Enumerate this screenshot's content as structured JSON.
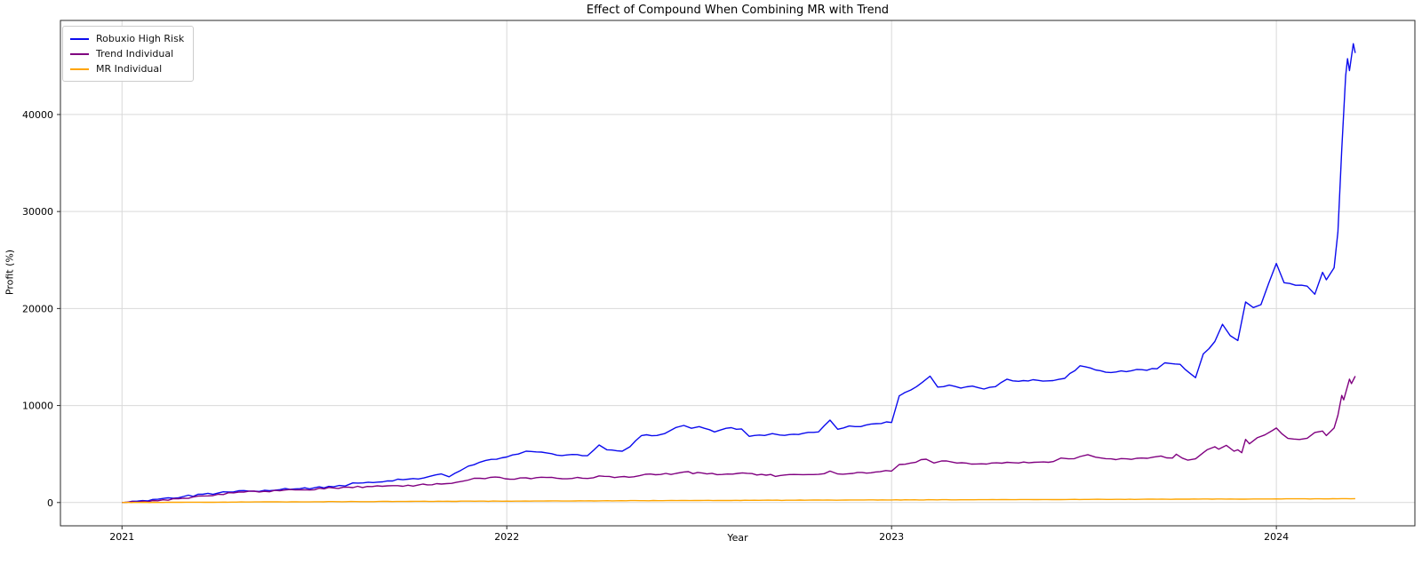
{
  "chart_data": {
    "type": "line",
    "title": "Effect of Compound When Combining MR with Trend",
    "xlabel": "Year",
    "ylabel": "Profit (%)",
    "x_ticks": [
      2021,
      2022,
      2023,
      2024
    ],
    "x_tick_labels": [
      "2021",
      "2022",
      "2023",
      "2024"
    ],
    "y_ticks": [
      0,
      10000,
      20000,
      30000,
      40000
    ],
    "y_tick_labels": [
      "0",
      "10000",
      "20000",
      "30000",
      "40000"
    ],
    "xlim": [
      2020.84,
      2024.36
    ],
    "ylim": [
      -2400,
      49700
    ],
    "grid": true,
    "grid_color": "#d9d9d9",
    "spine_color": "#2a2a2a",
    "background": "#ffffff",
    "legend_position": "upper-left",
    "series": [
      {
        "name": "Robuxio High Risk",
        "color": "#0b0bee",
        "points": [
          [
            2021.0,
            0
          ],
          [
            2021.04,
            150
          ],
          [
            2021.08,
            320
          ],
          [
            2021.12,
            480
          ],
          [
            2021.16,
            620
          ],
          [
            2021.21,
            850
          ],
          [
            2021.25,
            980
          ],
          [
            2021.29,
            1100
          ],
          [
            2021.33,
            1180
          ],
          [
            2021.37,
            1260
          ],
          [
            2021.41,
            1330
          ],
          [
            2021.45,
            1400
          ],
          [
            2021.5,
            1520
          ],
          [
            2021.55,
            1620
          ],
          [
            2021.58,
            1700
          ],
          [
            2021.6,
            2020
          ],
          [
            2021.64,
            2100
          ],
          [
            2021.69,
            2230
          ],
          [
            2021.73,
            2350
          ],
          [
            2021.77,
            2430
          ],
          [
            2021.8,
            2700
          ],
          [
            2021.83,
            2950
          ],
          [
            2021.85,
            2650
          ],
          [
            2021.88,
            3300
          ],
          [
            2021.9,
            3750
          ],
          [
            2021.93,
            4160
          ],
          [
            2021.96,
            4450
          ],
          [
            2022.0,
            4700
          ],
          [
            2022.03,
            5000
          ],
          [
            2022.05,
            5290
          ],
          [
            2022.09,
            5200
          ],
          [
            2022.13,
            4890
          ],
          [
            2022.17,
            4950
          ],
          [
            2022.21,
            4830
          ],
          [
            2022.24,
            5930
          ],
          [
            2022.26,
            5440
          ],
          [
            2022.3,
            5290
          ],
          [
            2022.32,
            5750
          ],
          [
            2022.35,
            6900
          ],
          [
            2022.39,
            6910
          ],
          [
            2022.41,
            7100
          ],
          [
            2022.44,
            7740
          ],
          [
            2022.46,
            7950
          ],
          [
            2022.48,
            7650
          ],
          [
            2022.5,
            7830
          ],
          [
            2022.54,
            7280
          ],
          [
            2022.57,
            7650
          ],
          [
            2022.61,
            7590
          ],
          [
            2022.63,
            6820
          ],
          [
            2022.67,
            6910
          ],
          [
            2022.69,
            7100
          ],
          [
            2022.71,
            6960
          ],
          [
            2022.77,
            7130
          ],
          [
            2022.81,
            7280
          ],
          [
            2022.84,
            8500
          ],
          [
            2022.86,
            7550
          ],
          [
            2022.89,
            7890
          ],
          [
            2022.92,
            7830
          ],
          [
            2022.96,
            8130
          ],
          [
            2023.0,
            8250
          ],
          [
            2023.02,
            11000
          ],
          [
            2023.05,
            11600
          ],
          [
            2023.08,
            12400
          ],
          [
            2023.1,
            13030
          ],
          [
            2023.12,
            11900
          ],
          [
            2023.15,
            12100
          ],
          [
            2023.18,
            11800
          ],
          [
            2023.21,
            12000
          ],
          [
            2023.24,
            11700
          ],
          [
            2023.27,
            11950
          ],
          [
            2023.3,
            12720
          ],
          [
            2023.33,
            12500
          ],
          [
            2023.38,
            12600
          ],
          [
            2023.42,
            12570
          ],
          [
            2023.45,
            12800
          ],
          [
            2023.49,
            14100
          ],
          [
            2023.53,
            13670
          ],
          [
            2023.57,
            13400
          ],
          [
            2023.61,
            13500
          ],
          [
            2023.65,
            13700
          ],
          [
            2023.69,
            13790
          ],
          [
            2023.71,
            14400
          ],
          [
            2023.75,
            14250
          ],
          [
            2023.79,
            12870
          ],
          [
            2023.81,
            15320
          ],
          [
            2023.84,
            16600
          ],
          [
            2023.86,
            18380
          ],
          [
            2023.88,
            17200
          ],
          [
            2023.9,
            16700
          ],
          [
            2023.92,
            20670
          ],
          [
            2023.94,
            20100
          ],
          [
            2023.96,
            20400
          ],
          [
            2023.98,
            22600
          ],
          [
            2024.0,
            24650
          ],
          [
            2024.02,
            22660
          ],
          [
            2024.05,
            22400
          ],
          [
            2024.08,
            22300
          ],
          [
            2024.1,
            21470
          ],
          [
            2024.12,
            23730
          ],
          [
            2024.13,
            22960
          ],
          [
            2024.15,
            24200
          ],
          [
            2024.16,
            27900
          ],
          [
            2024.17,
            36400
          ],
          [
            2024.18,
            44000
          ],
          [
            2024.185,
            45750
          ],
          [
            2024.19,
            44530
          ],
          [
            2024.2,
            47300
          ],
          [
            2024.205,
            46350
          ]
        ]
      },
      {
        "name": "Trend Individual",
        "color": "#800080",
        "points": [
          [
            2021.0,
            0
          ],
          [
            2021.08,
            200
          ],
          [
            2021.16,
            450
          ],
          [
            2021.21,
            680
          ],
          [
            2021.25,
            850
          ],
          [
            2021.29,
            1000
          ],
          [
            2021.37,
            1150
          ],
          [
            2021.45,
            1300
          ],
          [
            2021.55,
            1500
          ],
          [
            2021.65,
            1650
          ],
          [
            2021.69,
            1720
          ],
          [
            2021.77,
            1800
          ],
          [
            2021.83,
            1900
          ],
          [
            2021.87,
            2100
          ],
          [
            2021.9,
            2320
          ],
          [
            2021.93,
            2500
          ],
          [
            2021.97,
            2630
          ],
          [
            2022.02,
            2400
          ],
          [
            2022.05,
            2540
          ],
          [
            2022.13,
            2510
          ],
          [
            2022.21,
            2480
          ],
          [
            2022.24,
            2750
          ],
          [
            2022.28,
            2570
          ],
          [
            2022.33,
            2650
          ],
          [
            2022.36,
            2910
          ],
          [
            2022.4,
            2890
          ],
          [
            2022.44,
            3000
          ],
          [
            2022.46,
            3150
          ],
          [
            2022.52,
            2950
          ],
          [
            2022.56,
            2890
          ],
          [
            2022.6,
            3000
          ],
          [
            2022.65,
            2840
          ],
          [
            2022.71,
            2780
          ],
          [
            2022.77,
            2870
          ],
          [
            2022.81,
            2900
          ],
          [
            2022.84,
            3240
          ],
          [
            2022.86,
            2950
          ],
          [
            2022.9,
            3000
          ],
          [
            2022.97,
            3180
          ],
          [
            2023.0,
            3240
          ],
          [
            2023.02,
            3920
          ],
          [
            2023.05,
            4070
          ],
          [
            2023.09,
            4470
          ],
          [
            2023.11,
            4070
          ],
          [
            2023.13,
            4280
          ],
          [
            2023.17,
            4070
          ],
          [
            2023.22,
            3970
          ],
          [
            2023.26,
            4070
          ],
          [
            2023.3,
            4150
          ],
          [
            2023.33,
            4070
          ],
          [
            2023.37,
            4150
          ],
          [
            2023.42,
            4220
          ],
          [
            2023.44,
            4590
          ],
          [
            2023.46,
            4500
          ],
          [
            2023.49,
            4740
          ],
          [
            2023.51,
            4930
          ],
          [
            2023.53,
            4680
          ],
          [
            2023.57,
            4500
          ],
          [
            2023.61,
            4500
          ],
          [
            2023.65,
            4590
          ],
          [
            2023.68,
            4680
          ],
          [
            2023.7,
            4800
          ],
          [
            2023.73,
            4590
          ],
          [
            2023.74,
            4980
          ],
          [
            2023.77,
            4370
          ],
          [
            2023.79,
            4500
          ],
          [
            2023.81,
            5140
          ],
          [
            2023.82,
            5440
          ],
          [
            2023.84,
            5750
          ],
          [
            2023.85,
            5500
          ],
          [
            2023.87,
            5900
          ],
          [
            2023.89,
            5290
          ],
          [
            2023.9,
            5440
          ],
          [
            2023.91,
            5140
          ],
          [
            2023.92,
            6510
          ],
          [
            2023.93,
            6050
          ],
          [
            2023.94,
            6360
          ],
          [
            2023.95,
            6670
          ],
          [
            2023.97,
            6970
          ],
          [
            2023.99,
            7430
          ],
          [
            2024.0,
            7680
          ],
          [
            2024.03,
            6610
          ],
          [
            2024.06,
            6500
          ],
          [
            2024.08,
            6630
          ],
          [
            2024.1,
            7220
          ],
          [
            2024.12,
            7370
          ],
          [
            2024.13,
            6900
          ],
          [
            2024.15,
            7680
          ],
          [
            2024.16,
            9000
          ],
          [
            2024.17,
            11040
          ],
          [
            2024.175,
            10580
          ],
          [
            2024.19,
            12720
          ],
          [
            2024.195,
            12260
          ],
          [
            2024.205,
            13030
          ]
        ]
      },
      {
        "name": "MR Individual",
        "color": "#ffa500",
        "points": [
          [
            2021.0,
            0
          ],
          [
            2021.25,
            40
          ],
          [
            2021.5,
            80
          ],
          [
            2021.75,
            115
          ],
          [
            2022.0,
            150
          ],
          [
            2022.25,
            180
          ],
          [
            2022.5,
            210
          ],
          [
            2022.75,
            240
          ],
          [
            2023.0,
            265
          ],
          [
            2023.25,
            295
          ],
          [
            2023.5,
            320
          ],
          [
            2023.75,
            345
          ],
          [
            2024.0,
            370
          ],
          [
            2024.1,
            380
          ],
          [
            2024.205,
            400
          ]
        ]
      }
    ]
  }
}
